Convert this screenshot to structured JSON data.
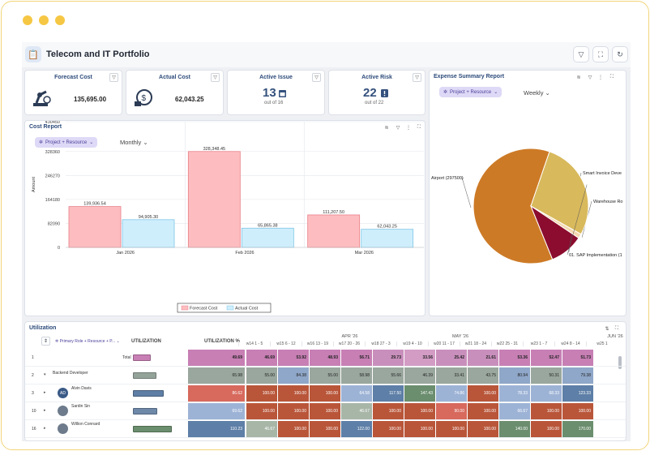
{
  "app": {
    "title": "Telecom and IT Portfolio"
  },
  "kpis": [
    {
      "title": "Forecast Cost",
      "value": "135,695.00",
      "icon": "robot-arm-icon"
    },
    {
      "title": "Actual Cost",
      "value": "62,043.25",
      "icon": "money-cycle-icon"
    },
    {
      "title": "Active Issue",
      "value": "13",
      "sub": "out of 16",
      "icon": "calendar-icon"
    },
    {
      "title": "Active Risk",
      "value": "22",
      "sub": "out of 22",
      "icon": "alert-icon"
    }
  ],
  "cost_report": {
    "title": "Cost Report",
    "chip": "Project + Resource",
    "period": "Monthly",
    "legend": [
      "Forecast Cost",
      "Actual Cost"
    ],
    "ylabel": "Amount"
  },
  "chart_data": [
    {
      "type": "bar",
      "title": "Cost Report",
      "ylabel": "Amount",
      "xlabel": "",
      "categories": [
        "Jan 2026",
        "Feb 2026",
        "Mar 2026"
      ],
      "series": [
        {
          "name": "Forecast Cost",
          "values": [
            139936.54,
            328348.45,
            111207.5
          ],
          "labels": [
            "139,936.54",
            "328,348.45",
            "111,207.50"
          ]
        },
        {
          "name": "Actual Cost",
          "values": [
            94905.3,
            65865.38,
            62043.25
          ],
          "labels": [
            "94,905.30",
            "65,865.38",
            "62,043.25"
          ]
        }
      ],
      "yticks": [
        "430450",
        "328360",
        "246270",
        "164180",
        "82090",
        "0"
      ],
      "ylim": [
        0,
        430450
      ],
      "legend": "bottom"
    },
    {
      "type": "pie",
      "title": "Expense Summary Report",
      "labels": [
        "Airport (297500)",
        "Smart Invoice Deve",
        "Warehouse Ro",
        "01. SAP Implementation (1"
      ],
      "values": [
        297500,
        46000,
        6000,
        135000
      ],
      "colors": [
        "#cd7a26",
        "#8b0c2e",
        "#f4d9b0",
        "#d8b95c"
      ]
    }
  ],
  "expense": {
    "title": "Expense Summary Report",
    "chip": "Project + Resource",
    "period": "Weekly"
  },
  "utilization": {
    "title": "Utilization",
    "group_header": "Primary Role + Resource + P...",
    "col_util": "UTILIZATION",
    "col_pct": "UTILIZATION %",
    "months": [
      "APR '26",
      "MAY '26",
      "JUN '26"
    ],
    "weeks": [
      "w14 1 - 5",
      "w15 6 - 12",
      "w16 13 - 19",
      "w17 20 - 26",
      "w18 27 - 3",
      "w19 4 - 10",
      "w20 11 - 17",
      "w21 18 - 24",
      "w22 25 - 31",
      "w23 1 - 7",
      "w24 8 - 14",
      "w25 1"
    ],
    "rows": [
      {
        "id": "1",
        "name": "Total",
        "pct": "49.69",
        "cells": [
          "46.69",
          "53.92",
          "48.93",
          "56.71",
          "29.73",
          "33.56",
          "25.42",
          "21.61",
          "53.36",
          "52.47",
          "51.73"
        ],
        "bar": "#c87fb4"
      },
      {
        "id": "2",
        "name": "Backend Developer",
        "pct": "65.98",
        "cells": [
          "55.00",
          "84.38",
          "55.00",
          "58.98",
          "55.66",
          "46.39",
          "33.41",
          "43.75",
          "80.94",
          "50.31",
          "79.38"
        ],
        "bar": "#94a39a"
      },
      {
        "id": "3",
        "name": "Alvin Davis",
        "pct": "86.62",
        "cells": [
          "100.00",
          "100.00",
          "100.00",
          "64.58",
          "117.50",
          "147.43",
          "74.86",
          "100.00",
          "78.33",
          "68.33",
          "123.33"
        ],
        "bar": "#5f7ea5",
        "initials": "AD"
      },
      {
        "id": "10",
        "name": "Sardin Sin",
        "pct": "69.62",
        "cells": [
          "100.00",
          "100.00",
          "100.00",
          "46.67",
          "100.00",
          "100.00",
          "90.00",
          "100.00",
          "66.67",
          "100.00",
          "100.00"
        ],
        "bar": "#6e88a8"
      },
      {
        "id": "16",
        "name": "Willion Connard",
        "pct": "110.23",
        "cells": [
          "46.67",
          "100.00",
          "100.00",
          "122.00",
          "100.00",
          "100.00",
          "100.00",
          "100.00",
          "140.00",
          "100.00",
          "170.00"
        ],
        "bar": "#6b8e6e"
      }
    ]
  }
}
